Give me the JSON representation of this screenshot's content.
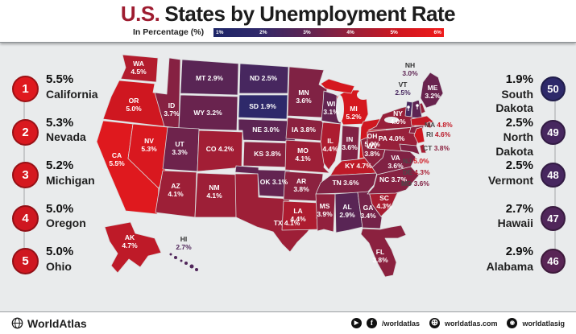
{
  "title": {
    "highlight": "U.S.",
    "rest": "States by Unemployment Rate"
  },
  "legend": {
    "label": "In Percentage (%)",
    "ticks": [
      "1%",
      "2%",
      "3%",
      "4%",
      "5%",
      "6%"
    ]
  },
  "colors": {
    "scale": [
      [
        "1",
        "#1d2567"
      ],
      [
        "2",
        "#30296a"
      ],
      [
        "3",
        "#5d2453"
      ],
      [
        "4",
        "#97203a"
      ],
      [
        "5",
        "#cf1720"
      ],
      [
        "6",
        "#ef1b1b"
      ]
    ],
    "background": "#e9ebec",
    "title_red": "#9e1c30",
    "rank_red": "#d7201f",
    "rank_navy": "#1f2a5e"
  },
  "top_states": [
    {
      "rank": "1",
      "value": "5.5%",
      "name": "California"
    },
    {
      "rank": "2",
      "value": "5.3%",
      "name": "Nevada"
    },
    {
      "rank": "3",
      "value": "5.2%",
      "name": "Michigan"
    },
    {
      "rank": "4",
      "value": "5.0%",
      "name": "Oregon"
    },
    {
      "rank": "5",
      "value": "5.0%",
      "name": "Ohio"
    }
  ],
  "bottom_states": [
    {
      "rank": "50",
      "value": "1.9%",
      "name": "South Dakota"
    },
    {
      "rank": "49",
      "value": "2.5%",
      "name": "North Dakota"
    },
    {
      "rank": "48",
      "value": "2.5%",
      "name": "Vermont"
    },
    {
      "rank": "47",
      "value": "2.7%",
      "name": "Hawaii"
    },
    {
      "rank": "46",
      "value": "2.9%",
      "name": "Alabama"
    }
  ],
  "map": {
    "states": [
      {
        "abbr": "WA",
        "value": "4.5%"
      },
      {
        "abbr": "OR",
        "value": "5.0%"
      },
      {
        "abbr": "CA",
        "value": "5.5%"
      },
      {
        "abbr": "NV",
        "value": "5.3%"
      },
      {
        "abbr": "ID",
        "value": "3.7%"
      },
      {
        "abbr": "MT",
        "value": "2.9%"
      },
      {
        "abbr": "WY",
        "value": "3.2%"
      },
      {
        "abbr": "UT",
        "value": "3.3%"
      },
      {
        "abbr": "CO",
        "value": "4.2%"
      },
      {
        "abbr": "AZ",
        "value": "4.1%"
      },
      {
        "abbr": "NM",
        "value": "4.1%"
      },
      {
        "abbr": "AK",
        "value": "4.7%"
      },
      {
        "abbr": "HI",
        "value": "2.7%"
      },
      {
        "abbr": "ND",
        "value": "2.5%"
      },
      {
        "abbr": "SD",
        "value": "1.9%"
      },
      {
        "abbr": "NE",
        "value": "3.0%"
      },
      {
        "abbr": "KS",
        "value": "3.8%"
      },
      {
        "abbr": "OK",
        "value": "3.1%"
      },
      {
        "abbr": "TX",
        "value": "4.1%"
      },
      {
        "abbr": "MN",
        "value": "3.6%"
      },
      {
        "abbr": "IA",
        "value": "3.8%"
      },
      {
        "abbr": "MO",
        "value": "4.1%"
      },
      {
        "abbr": "AR",
        "value": "3.8%"
      },
      {
        "abbr": "LA",
        "value": "4.4%"
      },
      {
        "abbr": "WI",
        "value": "3.1%"
      },
      {
        "abbr": "IL",
        "value": "4.4%"
      },
      {
        "abbr": "IN",
        "value": "3.6%"
      },
      {
        "abbr": "MI",
        "value": "5.2%"
      },
      {
        "abbr": "OH",
        "value": "5.0%"
      },
      {
        "abbr": "KY",
        "value": "4.7%"
      },
      {
        "abbr": "TN",
        "value": "3.6%"
      },
      {
        "abbr": "MS",
        "value": "3.9%"
      },
      {
        "abbr": "AL",
        "value": "2.9%"
      },
      {
        "abbr": "GA",
        "value": "3.4%"
      },
      {
        "abbr": "FL",
        "value": "3.8%"
      },
      {
        "abbr": "SC",
        "value": "4.3%"
      },
      {
        "abbr": "NC",
        "value": "3.7%"
      },
      {
        "abbr": "VA",
        "value": "3.6%"
      },
      {
        "abbr": "WV",
        "value": "3.8%"
      },
      {
        "abbr": "PA",
        "value": "4.0%"
      },
      {
        "abbr": "NY",
        "value": "4.0%"
      },
      {
        "abbr": "ME",
        "value": "3.2%"
      },
      {
        "abbr": "NH",
        "value": "3.0%"
      },
      {
        "abbr": "VT",
        "value": "2.5%"
      },
      {
        "abbr": "MA",
        "value": "4.8%"
      },
      {
        "abbr": "RI",
        "value": "4.6%"
      },
      {
        "abbr": "CT",
        "value": "3.8%"
      },
      {
        "abbr": "NJ",
        "value": "5.0%"
      },
      {
        "abbr": "DE",
        "value": "4.3%"
      },
      {
        "abbr": "MD",
        "value": "3.6%"
      }
    ]
  },
  "footer": {
    "brand": "WorldAtlas",
    "social": [
      {
        "icon": "youtube-play-icon",
        "label": ""
      },
      {
        "icon": "facebook-icon",
        "label": "/worldatlas"
      },
      {
        "icon": "web-icon",
        "label": "worldatlas.com"
      },
      {
        "icon": "instagram-icon",
        "label": "worldatlasig"
      }
    ]
  }
}
